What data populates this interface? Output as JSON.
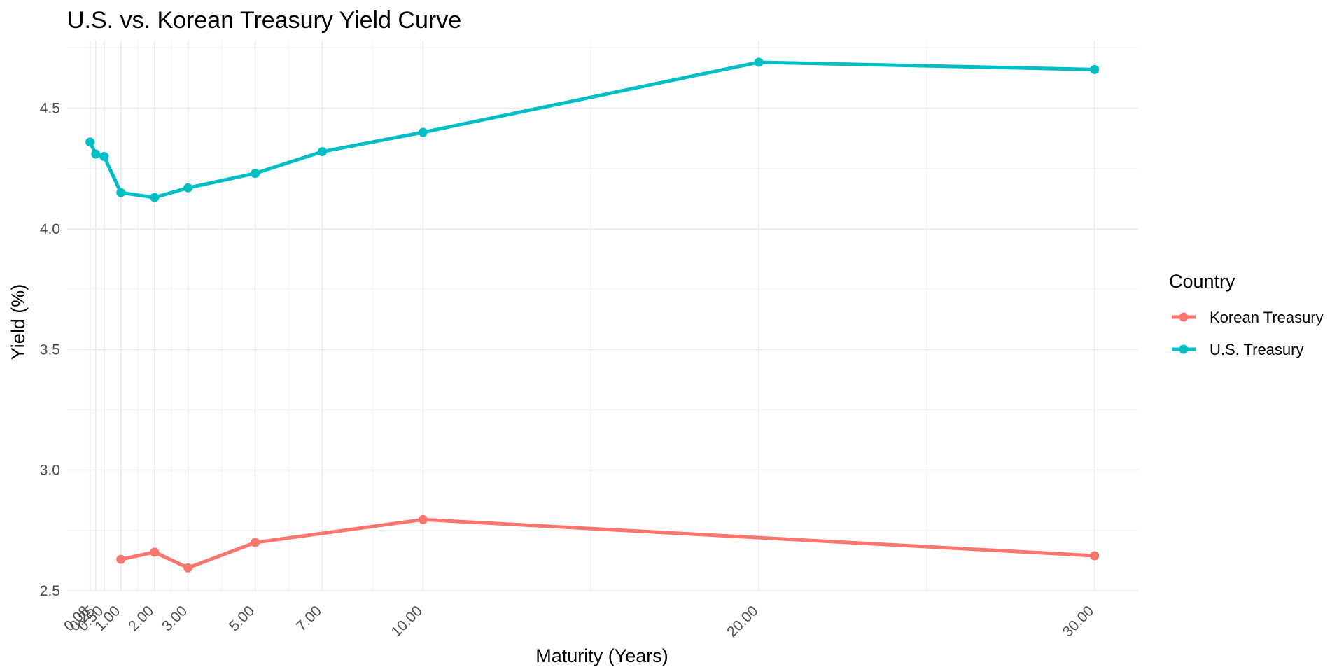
{
  "chart_data": {
    "type": "line",
    "title": "U.S. vs. Korean Treasury Yield Curve",
    "xlabel": "Maturity (Years)",
    "ylabel": "Yield (%)",
    "xlim": [
      -0.6,
      31.3
    ],
    "ylim": [
      2.5,
      4.78
    ],
    "x_ticks": [
      0.08,
      0.25,
      0.5,
      1.0,
      2.0,
      3.0,
      5.0,
      7.0,
      10.0,
      20.0,
      30.0
    ],
    "x_tick_labels": [
      "0.08",
      "0.25",
      "0.50",
      "1.00",
      "2.00",
      "3.00",
      "5.00",
      "7.00",
      "10.00",
      "20.00",
      "30.00"
    ],
    "x_minor_grid": [
      1.5,
      2.5,
      4.0,
      6.0,
      8.5,
      15.0,
      25.0
    ],
    "y_ticks": [
      2.5,
      3.0,
      3.5,
      4.0,
      4.5
    ],
    "y_tick_labels": [
      "2.5",
      "3.0",
      "3.5",
      "4.0",
      "4.5"
    ],
    "y_minor_grid": [
      2.75,
      3.25,
      3.75,
      4.25,
      4.75
    ],
    "grid": true,
    "legend_title": "Country",
    "legend_position": "right",
    "series": [
      {
        "name": "Korean Treasury",
        "color": "#F8766D",
        "x": [
          1,
          2,
          3,
          5,
          10,
          30
        ],
        "y": [
          2.63,
          2.66,
          2.595,
          2.7,
          2.795,
          2.645
        ]
      },
      {
        "name": "U.S. Treasury",
        "color": "#00BFC4",
        "x": [
          0.08,
          0.25,
          0.5,
          1,
          2,
          3,
          5,
          7,
          10,
          20,
          30
        ],
        "y": [
          4.36,
          4.31,
          4.3,
          4.15,
          4.13,
          4.17,
          4.23,
          4.32,
          4.4,
          4.69,
          4.66
        ]
      }
    ]
  }
}
